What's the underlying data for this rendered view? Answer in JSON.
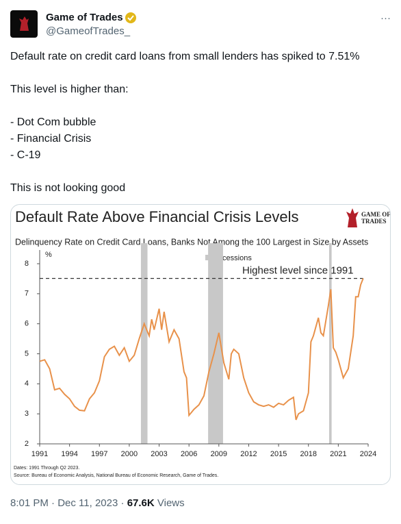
{
  "tweet": {
    "author_name": "Game of Trades",
    "handle": "@GameofTrades_",
    "more": "···",
    "lines": [
      "Default rate on credit card loans from small lenders has spiked to 7.51%",
      "This level is higher than:",
      "- Dot Com bubble",
      "- Financial Crisis",
      "- C-19",
      "This is not looking good"
    ],
    "footer": {
      "time": "8:01 PM",
      "separator": "·",
      "date": "Dec 11, 2023",
      "views": "67.6K",
      "views_label": "Views"
    }
  },
  "chart_data": {
    "type": "line",
    "title": "Default Rate Above Financial Crisis Levels",
    "subtitle": "Delinquency Rate on Credit Card Loans, Banks Not Among the 100 Largest in Size by Assets",
    "logo_lines": [
      "GAME OF",
      "TRADES"
    ],
    "y_label": "%",
    "notes": [
      "Dates: 1991 Through Q2 2023.",
      "Source: Bureau of Economic Analysis, National Bureau of Economic Research, Game of Trades."
    ],
    "color": "#e8914a",
    "x": [
      1991.0,
      1991.5,
      1992.0,
      1992.5,
      1993.0,
      1993.5,
      1994.0,
      1994.5,
      1995.0,
      1995.5,
      1996.0,
      1996.5,
      1997.0,
      1997.5,
      1998.0,
      1998.5,
      1999.0,
      1999.5,
      2000.0,
      2000.5,
      2001.0,
      2001.5,
      2002.0,
      2002.25,
      2002.5,
      2003.0,
      2003.25,
      2003.5,
      2004.0,
      2004.5,
      2005.0,
      2005.5,
      2005.75,
      2006.0,
      2006.5,
      2007.0,
      2007.5,
      2008.0,
      2008.5,
      2009.0,
      2009.5,
      2010.0,
      2010.25,
      2010.5,
      2011.0,
      2011.5,
      2012.0,
      2012.5,
      2013.0,
      2013.5,
      2014.0,
      2014.5,
      2015.0,
      2015.5,
      2016.0,
      2016.5,
      2016.75,
      2017.0,
      2017.5,
      2018.0,
      2018.25,
      2018.5,
      2019.0,
      2019.25,
      2019.5,
      2020.0,
      2020.25,
      2020.5,
      2020.75,
      2021.0,
      2021.5,
      2022.0,
      2022.5,
      2022.75,
      2023.0,
      2023.25,
      2023.5
    ],
    "values": [
      4.75,
      4.8,
      4.5,
      3.8,
      3.85,
      3.65,
      3.5,
      3.25,
      3.12,
      3.1,
      3.5,
      3.7,
      4.1,
      4.9,
      5.15,
      5.25,
      4.95,
      5.2,
      4.75,
      4.95,
      5.5,
      6.0,
      5.6,
      6.15,
      5.8,
      6.5,
      5.8,
      6.4,
      5.4,
      5.8,
      5.5,
      4.4,
      4.2,
      2.95,
      3.15,
      3.3,
      3.6,
      4.4,
      5.0,
      5.7,
      4.7,
      4.15,
      5.0,
      5.15,
      5.0,
      4.2,
      3.7,
      3.4,
      3.3,
      3.25,
      3.3,
      3.22,
      3.35,
      3.3,
      3.45,
      3.55,
      2.8,
      3.0,
      3.1,
      3.7,
      5.4,
      5.6,
      6.2,
      5.7,
      5.6,
      6.6,
      7.15,
      5.2,
      5.05,
      4.8,
      4.2,
      4.5,
      5.6,
      6.9,
      6.9,
      7.3,
      7.51
    ],
    "recessions": {
      "label": "Recessions",
      "color": "#c8c8c8",
      "periods": [
        [
          2001.17,
          2001.83
        ],
        [
          2007.92,
          2009.42
        ],
        [
          2020.08,
          2020.33
        ]
      ]
    },
    "reference": {
      "value": 7.51,
      "label": "Highest level since 1991"
    },
    "xlim": [
      1991,
      2024
    ],
    "xticks": [
      1991,
      1994,
      1997,
      2000,
      2003,
      2006,
      2009,
      2012,
      2015,
      2018,
      2021,
      2024
    ],
    "ylim": [
      2,
      8
    ],
    "yticks": [
      2,
      3,
      4,
      5,
      6,
      7,
      8
    ],
    "grid": false
  }
}
